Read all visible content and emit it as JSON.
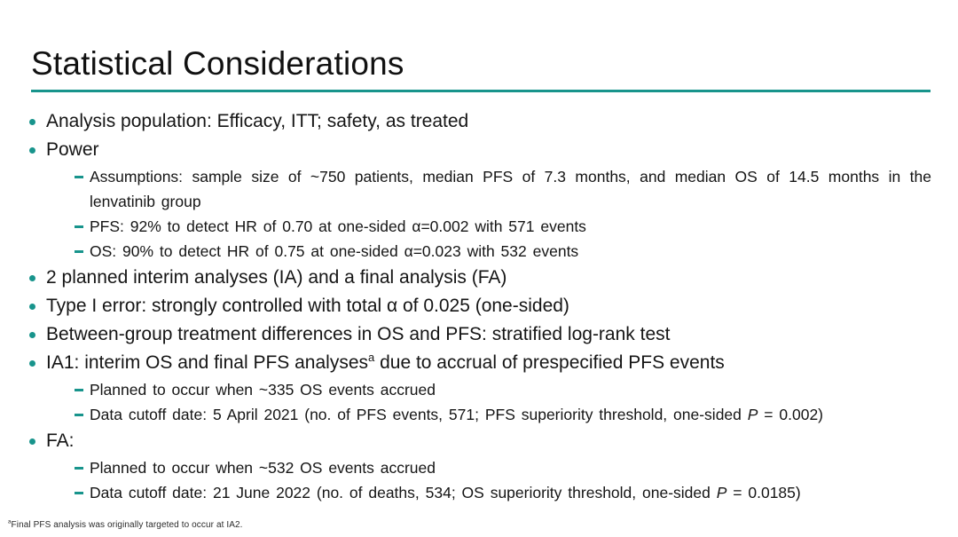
{
  "accent_color": "#18948c",
  "slide_title": "Statistical Considerations",
  "bullets": [
    {
      "text": "Analysis population: Efficacy, ITT; safety, as treated"
    },
    {
      "text": "Power",
      "subs": [
        "Assumptions: sample size of ~750 patients, median PFS of 7.3 months, and median OS of 14.5 months in the lenvatinib group",
        "PFS: 92% to detect HR of 0.70 at one-sided α=0.002 with 571 events",
        "OS: 90% to detect HR of 0.75 at one-sided α=0.023 with 532 events"
      ]
    },
    {
      "text": "2 planned interim analyses (IA) and a final analysis (FA)"
    },
    {
      "text": "Type I error: strongly controlled with total α of 0.025 (one-sided)"
    },
    {
      "text": "Between-group treatment differences in OS and PFS: stratified log-rank test"
    },
    {
      "pre": "IA1: interim OS and final PFS analyses",
      "sup": "a",
      "post": " due to accrual of prespecified PFS events",
      "subs": [
        "Planned to occur when ~335 OS events accrued",
        {
          "pre": "Data cutoff date: 5 April 2021 (no. of PFS events, 571; PFS superiority threshold, one-sided ",
          "italic": "P",
          "post": " = 0.002)"
        }
      ]
    },
    {
      "text": "FA:",
      "subs": [
        "Planned to occur when ~532 OS events accrued",
        {
          "pre": "Data cutoff date: 21 June 2022 (no. of deaths, 534; OS superiority threshold, one-sided ",
          "italic": "P",
          "post": " = 0.0185)"
        }
      ]
    }
  ],
  "footnote": {
    "sup": "a",
    "text": "Final PFS analysis was originally targeted to occur at IA2."
  }
}
